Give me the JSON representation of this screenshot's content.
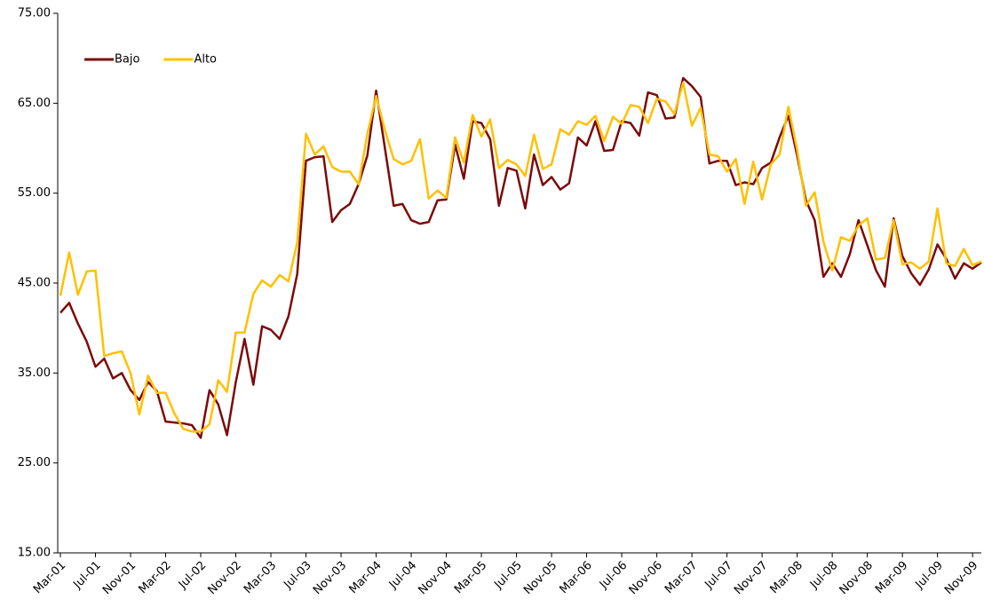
{
  "chart_data": {
    "type": "line",
    "categories": [
      "Mar-01",
      null,
      null,
      null,
      "Jul-01",
      null,
      null,
      null,
      "Nov-01",
      null,
      null,
      null,
      "Mar-02",
      null,
      null,
      null,
      "Jul-02",
      null,
      null,
      null,
      "Nov-02",
      null,
      null,
      null,
      "Mar-03",
      null,
      null,
      null,
      "Jul-03",
      null,
      null,
      null,
      "Nov-03",
      null,
      null,
      null,
      "Mar-04",
      null,
      null,
      null,
      "Jul-04",
      null,
      null,
      null,
      "Nov-04",
      null,
      null,
      null,
      "Mar-05",
      null,
      null,
      null,
      "Jul-05",
      null,
      null,
      null,
      "Nov-05",
      null,
      null,
      null,
      "Mar-06",
      null,
      null,
      null,
      "Jul-06",
      null,
      null,
      null,
      "Nov-06",
      null,
      null,
      null,
      "Mar-07",
      null,
      null,
      null,
      "Jul-07",
      null,
      null,
      null,
      "Nov-07",
      null,
      null,
      null,
      "Mar-08",
      null,
      null,
      null,
      "Jul-08",
      null,
      null,
      null,
      "Nov-08",
      null,
      null,
      null,
      "Mar-09",
      null,
      null,
      null,
      "Jul-09",
      null,
      null,
      null,
      "Nov-09",
      null
    ],
    "series": [
      {
        "name": "Bajo",
        "color": "#7b0a0a",
        "values": [
          41.7,
          42.8,
          40.5,
          38.5,
          35.7,
          36.6,
          34.4,
          35.0,
          33.1,
          32.0,
          34.0,
          33.0,
          29.6,
          29.5,
          29.4,
          29.2,
          27.8,
          33.1,
          31.5,
          28.1,
          34.0,
          38.8,
          33.7,
          40.2,
          39.8,
          38.8,
          41.3,
          46.0,
          58.6,
          59.0,
          59.1,
          51.8,
          53.1,
          53.8,
          56.0,
          59.2,
          66.4,
          60.0,
          53.6,
          53.8,
          52.0,
          51.6,
          51.8,
          54.2,
          54.3,
          60.4,
          56.6,
          63.0,
          62.8,
          61.0,
          53.6,
          57.8,
          57.5,
          53.3,
          59.3,
          55.9,
          56.8,
          55.4,
          56.1,
          61.2,
          60.3,
          63.0,
          59.7,
          59.8,
          63.0,
          62.8,
          61.4,
          66.2,
          65.9,
          63.3,
          63.4,
          67.8,
          66.9,
          65.7,
          58.3,
          58.6,
          58.6,
          55.9,
          56.2,
          56.0,
          57.8,
          58.4,
          61.2,
          63.6,
          59.2,
          54.2,
          52.0,
          45.7,
          47.2,
          45.7,
          48.2,
          52.0,
          49.2,
          46.4,
          44.6,
          52.2,
          48.0,
          46.1,
          44.8,
          46.5,
          49.3,
          47.7,
          45.5,
          47.2,
          46.6,
          47.3
        ]
      },
      {
        "name": "Alto",
        "color": "#ffc000",
        "values": [
          43.6,
          48.4,
          43.7,
          46.3,
          46.4,
          36.9,
          37.2,
          37.4,
          35.0,
          30.4,
          34.7,
          32.8,
          32.8,
          30.5,
          28.8,
          28.5,
          28.5,
          29.3,
          34.2,
          32.9,
          39.5,
          39.5,
          43.8,
          45.3,
          44.6,
          45.9,
          45.2,
          49.5,
          61.6,
          59.3,
          60.2,
          57.9,
          57.4,
          57.4,
          56.0,
          61.6,
          65.8,
          62.0,
          58.8,
          58.2,
          58.6,
          61.0,
          54.4,
          55.3,
          54.5,
          61.2,
          58.4,
          63.7,
          61.3,
          63.2,
          57.8,
          58.7,
          58.2,
          56.9,
          61.5,
          57.7,
          58.2,
          62.1,
          61.5,
          63.0,
          62.6,
          63.6,
          60.8,
          63.5,
          62.7,
          64.8,
          64.6,
          62.8,
          65.5,
          65.2,
          63.8,
          67.3,
          62.5,
          64.5,
          59.3,
          59.1,
          57.4,
          58.8,
          53.8,
          58.5,
          54.3,
          58.2,
          59.3,
          64.6,
          59.8,
          53.6,
          55.1,
          49.6,
          46.4,
          50.1,
          49.7,
          51.4,
          52.2,
          47.6,
          47.8,
          52.0,
          47.1,
          47.3,
          46.6,
          47.4,
          53.3,
          47.2,
          46.9,
          48.8,
          47.0,
          47.4
        ]
      }
    ],
    "ylim": [
      15,
      75
    ],
    "yticks": [
      {
        "value": 15,
        "label": "15.00"
      },
      {
        "value": 25,
        "label": "25.00"
      },
      {
        "value": 35,
        "label": "35.00"
      },
      {
        "value": 45,
        "label": "45.00"
      },
      {
        "value": 55,
        "label": "55.00"
      },
      {
        "value": 65,
        "label": "65.00"
      },
      {
        "value": 75,
        "label": "75.00"
      }
    ],
    "grid": false,
    "legend": "upper left"
  }
}
